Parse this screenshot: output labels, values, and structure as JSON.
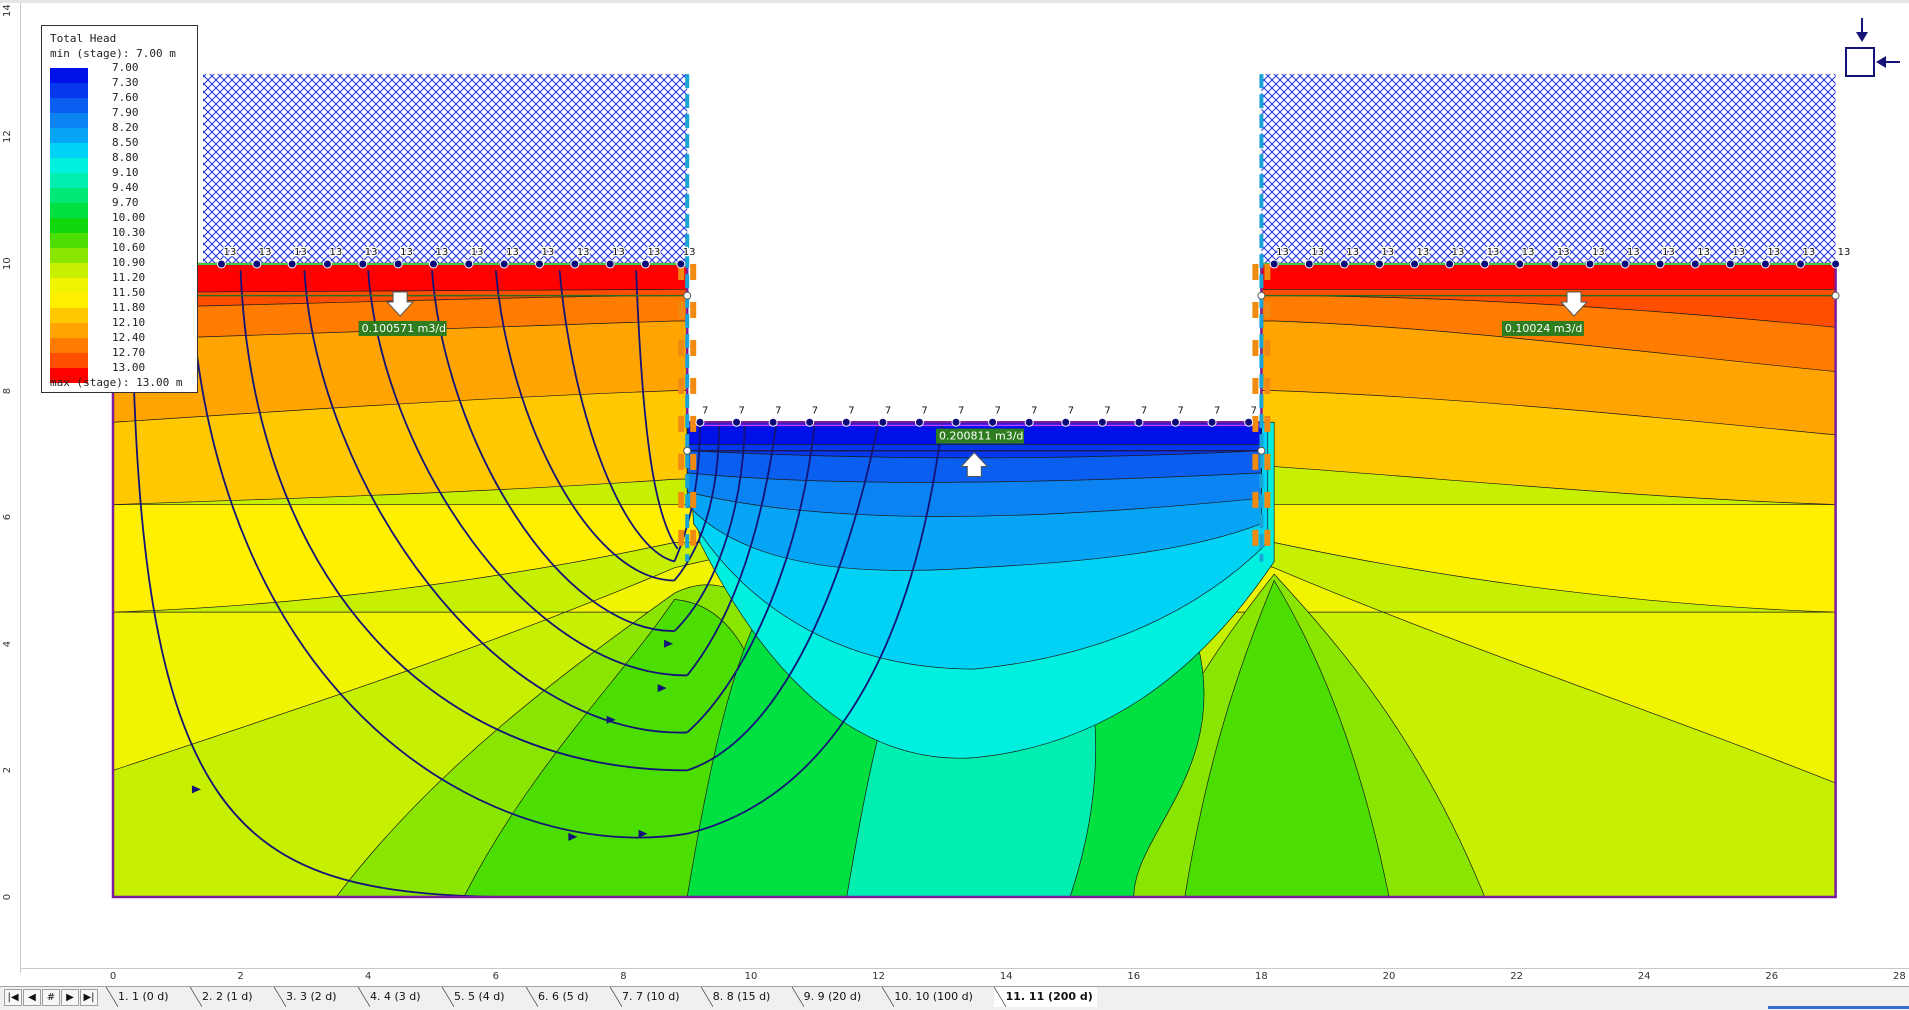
{
  "legend": {
    "title": "Total Head",
    "min_label": "min (stage): 7.00 m",
    "max_label": "max (stage): 13.00 m",
    "entries": [
      {
        "value": "7.00",
        "color": "#0010e8"
      },
      {
        "value": "7.30",
        "color": "#0638ee"
      },
      {
        "value": "7.60",
        "color": "#0a5ff0"
      },
      {
        "value": "7.90",
        "color": "#0b83f2"
      },
      {
        "value": "8.20",
        "color": "#06a4f4"
      },
      {
        "value": "8.50",
        "color": "#00d2f6"
      },
      {
        "value": "8.80",
        "color": "#00f0e0"
      },
      {
        "value": "9.10",
        "color": "#00eeb0"
      },
      {
        "value": "9.40",
        "color": "#00e878"
      },
      {
        "value": "9.70",
        "color": "#00e040"
      },
      {
        "value": "10.00",
        "color": "#10d80c"
      },
      {
        "value": "10.30",
        "color": "#4cde00"
      },
      {
        "value": "10.60",
        "color": "#8ae600"
      },
      {
        "value": "10.90",
        "color": "#c6f000"
      },
      {
        "value": "11.20",
        "color": "#f0f400"
      },
      {
        "value": "11.50",
        "color": "#fff000"
      },
      {
        "value": "11.80",
        "color": "#ffc800"
      },
      {
        "value": "12.10",
        "color": "#ffa400"
      },
      {
        "value": "12.40",
        "color": "#ff7c00"
      },
      {
        "value": "12.70",
        "color": "#ff4e00"
      },
      {
        "value": "13.00",
        "color": "#ff0000"
      }
    ]
  },
  "flux_labels": {
    "left": "0.100571 m3/d",
    "center": "0.200811 m3/d",
    "right": "0.10024 m3/d"
  },
  "boundary_head_labels": {
    "high": "13",
    "low": "7"
  },
  "x_axis_ticks": [
    "0",
    "2",
    "4",
    "6",
    "8",
    "10",
    "12",
    "14",
    "16",
    "18",
    "20",
    "22",
    "24",
    "26",
    "28"
  ],
  "y_axis_ticks": [
    "0",
    "2",
    "4",
    "6",
    "8",
    "10",
    "12",
    "14"
  ],
  "stage_tabs": [
    {
      "label": "1. 1 (0 d)",
      "active": false
    },
    {
      "label": "2. 2 (1 d)",
      "active": false
    },
    {
      "label": "3. 3 (2 d)",
      "active": false
    },
    {
      "label": "4. 4 (3 d)",
      "active": false
    },
    {
      "label": "5. 5 (4 d)",
      "active": false
    },
    {
      "label": "6. 6 (5 d)",
      "active": false
    },
    {
      "label": "7. 7 (10 d)",
      "active": false
    },
    {
      "label": "8. 8 (15 d)",
      "active": false
    },
    {
      "label": "9. 9 (20 d)",
      "active": false
    },
    {
      "label": "10. 10 (100 d)",
      "active": false
    },
    {
      "label": "11. 11 (200 d)",
      "active": true
    }
  ],
  "nav_buttons": [
    "first",
    "prev",
    "number",
    "next",
    "last"
  ],
  "nav_symbols": {
    "first": "|◀",
    "prev": "◀",
    "number": "#",
    "next": "▶",
    "last": "▶|"
  },
  "colors": {
    "boundary": "#7a1c9c",
    "flowline": "#141478",
    "wall": "#1aa3d6",
    "boundary_node": "#0a0a7a",
    "hatch": "#1f2fd8",
    "head_line": "#2e6b1c"
  }
}
